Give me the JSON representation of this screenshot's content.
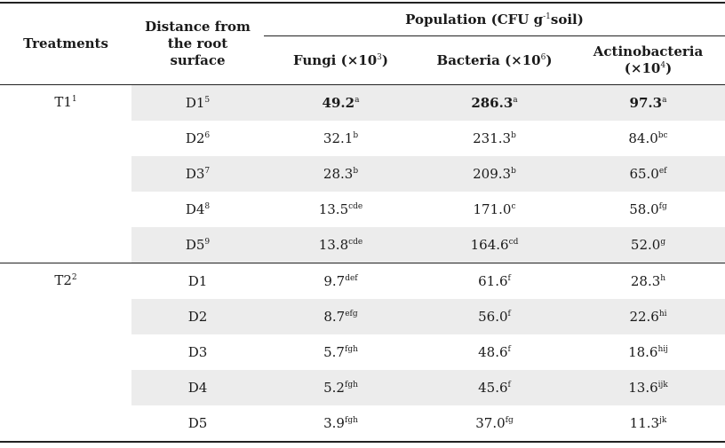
{
  "header": {
    "treatments": "Treatments",
    "distance": "Distance from the root surface",
    "population": "Population (CFU g",
    "population_sup": "-1",
    "population_tail": "soil)",
    "fungi": "Fungi (×10",
    "fungi_sup": "3",
    "fungi_tail": ")",
    "bacteria": "Bacteria (×10",
    "bacteria_sup": "6",
    "bacteria_tail": ")",
    "actino_line1": "Actinobacteria",
    "actino_line2": "(×10",
    "actino_sup": "4",
    "actino_tail": ")"
  },
  "groups": [
    {
      "treatment": "T1",
      "treatment_sup": "1",
      "rows": [
        {
          "distance": "D1",
          "distance_sup": "5",
          "fungi": "49.2",
          "fungi_sup": "a",
          "bacteria": "286.3",
          "bacteria_sup": "a",
          "actino": "97.3",
          "actino_sup": "a"
        },
        {
          "distance": "D2",
          "distance_sup": "6",
          "fungi": "32.1",
          "fungi_sup": "b",
          "bacteria": "231.3",
          "bacteria_sup": "b",
          "actino": "84.0",
          "actino_sup": "bc"
        },
        {
          "distance": "D3",
          "distance_sup": "7",
          "fungi": "28.3",
          "fungi_sup": "b",
          "bacteria": "209.3",
          "bacteria_sup": "b",
          "actino": "65.0",
          "actino_sup": "ef"
        },
        {
          "distance": "D4",
          "distance_sup": "8",
          "fungi": "13.5",
          "fungi_sup": "cde",
          "bacteria": "171.0",
          "bacteria_sup": "c",
          "actino": "58.0",
          "actino_sup": "fg"
        },
        {
          "distance": "D5",
          "distance_sup": "9",
          "fungi": "13.8",
          "fungi_sup": "cde",
          "bacteria": "164.6",
          "bacteria_sup": "cd",
          "actino": "52.0",
          "actino_sup": "g"
        }
      ]
    },
    {
      "treatment": "T2",
      "treatment_sup": "2",
      "rows": [
        {
          "distance": "D1",
          "distance_sup": "",
          "fungi": "9.7",
          "fungi_sup": "def",
          "bacteria": "61.6",
          "bacteria_sup": "f",
          "actino": "28.3",
          "actino_sup": "h"
        },
        {
          "distance": "D2",
          "distance_sup": "",
          "fungi": "8.7",
          "fungi_sup": "efg",
          "bacteria": "56.0",
          "bacteria_sup": "f",
          "actino": "22.6",
          "actino_sup": "hi"
        },
        {
          "distance": "D3",
          "distance_sup": "",
          "fungi": "5.7",
          "fungi_sup": "fgh",
          "bacteria": "48.6",
          "bacteria_sup": "f",
          "actino": "18.6",
          "actino_sup": "hij"
        },
        {
          "distance": "D4",
          "distance_sup": "",
          "fungi": "5.2",
          "fungi_sup": "fgh",
          "bacteria": "45.6",
          "bacteria_sup": "f",
          "actino": "13.6",
          "actino_sup": "ijk"
        },
        {
          "distance": "D5",
          "distance_sup": "",
          "fungi": "3.9",
          "fungi_sup": "fgh",
          "bacteria": "37.0",
          "bacteria_sup": "fg",
          "actino": "11.3",
          "actino_sup": "jk"
        }
      ]
    }
  ]
}
